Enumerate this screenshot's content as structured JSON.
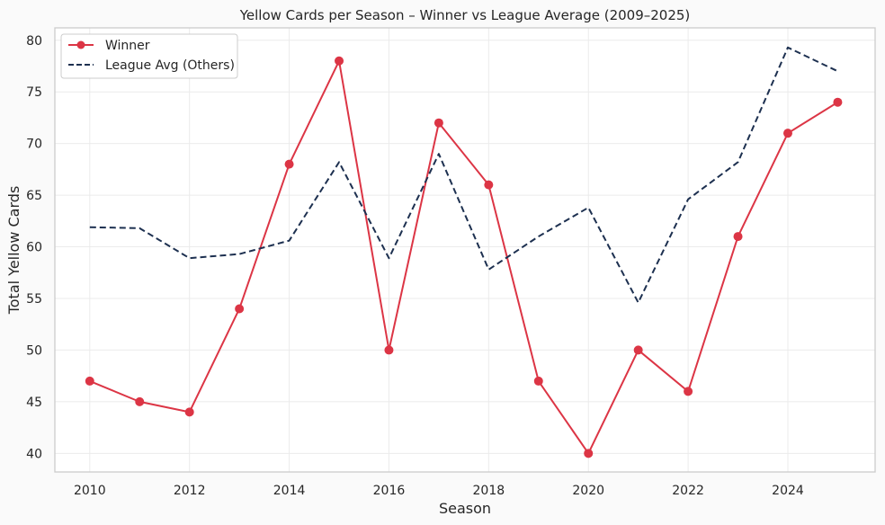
{
  "chart_data": {
    "type": "line",
    "title": "Yellow Cards per Season – Winner vs League Average (2009–2025)",
    "xlabel": "Season",
    "ylabel": "Total Yellow Cards",
    "x": [
      2010,
      2011,
      2012,
      2013,
      2014,
      2015,
      2016,
      2017,
      2018,
      2019,
      2020,
      2021,
      2022,
      2023,
      2024,
      2025
    ],
    "xlim": [
      2009.3,
      2025.75
    ],
    "ylim": [
      38.2,
      81.2
    ],
    "xticks": [
      2010,
      2012,
      2014,
      2016,
      2018,
      2020,
      2022,
      2024
    ],
    "yticks": [
      40,
      45,
      50,
      55,
      60,
      65,
      70,
      75,
      80
    ],
    "grid": true,
    "legend": "top-left",
    "series": [
      {
        "name": "Winner",
        "color": "#dc3545",
        "style": "solid",
        "marker": "circle",
        "values": [
          47,
          45,
          44,
          54,
          68,
          78,
          50,
          72,
          66,
          47,
          40,
          50,
          46,
          61,
          71,
          74
        ]
      },
      {
        "name": "League Avg (Others)",
        "color": "#1d3050",
        "style": "dashed",
        "marker": "none",
        "values": [
          61.9,
          61.8,
          58.9,
          59.3,
          60.6,
          68.2,
          58.9,
          69.0,
          57.8,
          61.0,
          63.8,
          54.6,
          64.6,
          68.2,
          79.3,
          77.0
        ]
      }
    ]
  }
}
